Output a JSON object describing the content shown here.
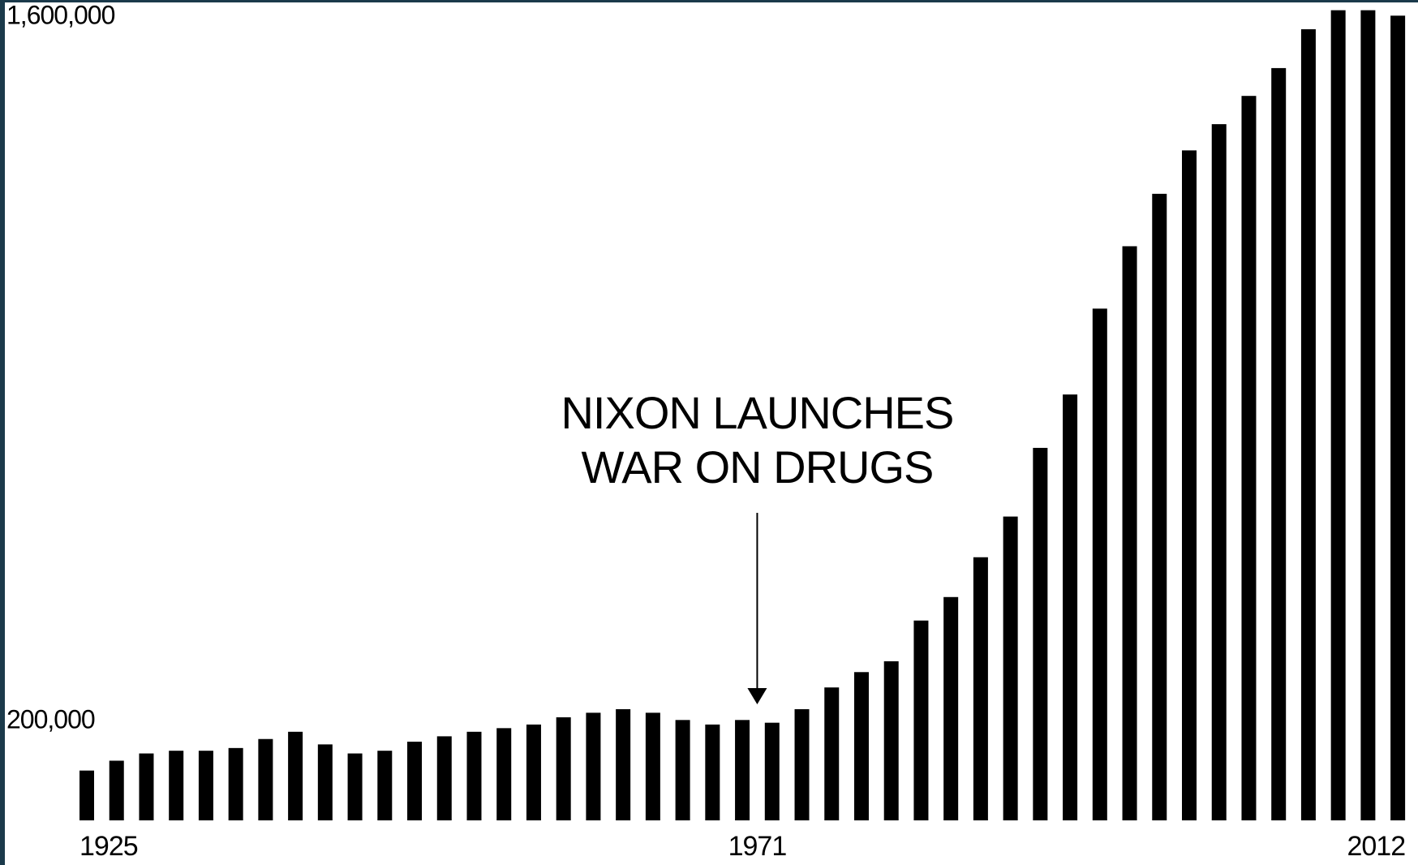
{
  "chart_data": {
    "type": "bar",
    "annotation": [
      "NIXON LAUNCHES",
      "WAR ON DRUGS"
    ],
    "categories": [
      "1925",
      null,
      null,
      null,
      null,
      null,
      null,
      null,
      null,
      null,
      null,
      null,
      null,
      null,
      null,
      null,
      null,
      null,
      null,
      null,
      null,
      null,
      "1971",
      null,
      null,
      null,
      null,
      null,
      null,
      null,
      null,
      null,
      null,
      null,
      null,
      null,
      null,
      null,
      null,
      null,
      null,
      null,
      null,
      null,
      "2012"
    ],
    "values": [
      99000,
      118600,
      133000,
      138400,
      138400,
      143800,
      161700,
      176100,
      151000,
      133000,
      138400,
      156400,
      167100,
      176100,
      183300,
      190500,
      204900,
      213900,
      221000,
      213900,
      199500,
      190500,
      199500,
      194100,
      221000,
      264200,
      294700,
      316300,
      397200,
      443900,
      523000,
      603900,
      740400,
      846500,
      1017200,
      1141200,
      1245400,
      1331700,
      1383800,
      1440000,
      1495300,
      1572500,
      1610300,
      1610300,
      1599500
    ],
    "color": "#000000",
    "ylim": [
      0,
      1600000
    ],
    "yticks": [
      {
        "value": 200000,
        "label": "200,000"
      },
      {
        "value": 1600000,
        "label": "1,600,000"
      }
    ],
    "grid": false
  }
}
